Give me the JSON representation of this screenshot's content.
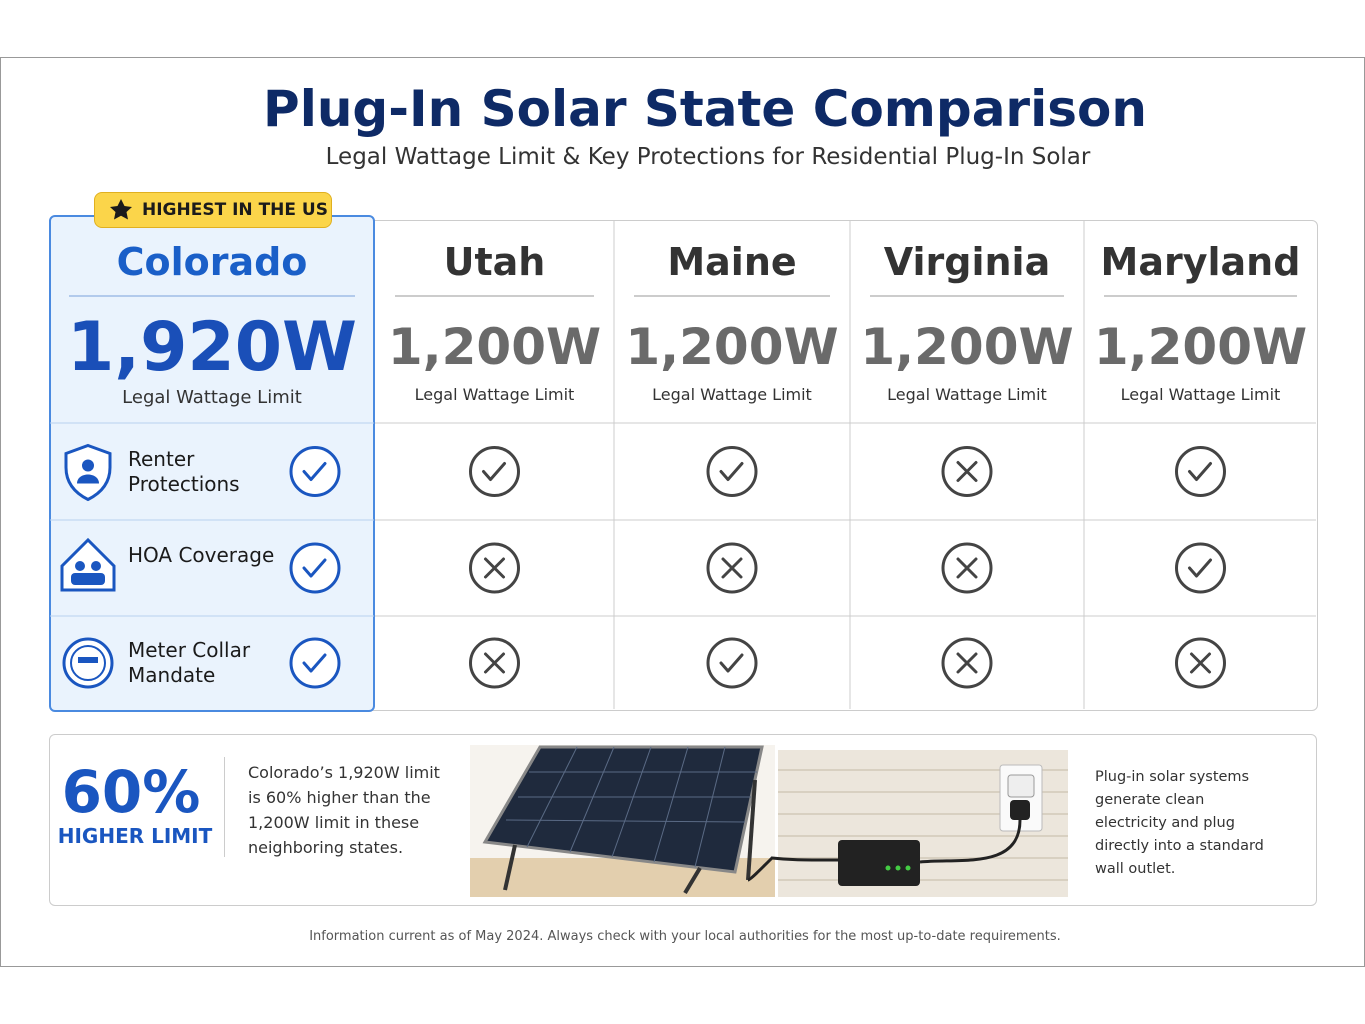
{
  "header": {
    "title": "Plug-In Solar State Comparison",
    "subtitle": "Legal Wattage Limit & Key Protections for Residential Plug-In Solar"
  },
  "badge": "HIGHEST IN THE US",
  "table": {
    "states": [
      {
        "name": "Colorado",
        "limit": "1,920W",
        "limit_label": "Legal Wattage Limit"
      },
      {
        "name": "Utah",
        "limit": "1,200W",
        "limit_label": "Legal Wattage Limit"
      },
      {
        "name": "Maine",
        "limit": "1,200W",
        "limit_label": "Legal Wattage Limit"
      },
      {
        "name": "Virginia",
        "limit": "1,200W",
        "limit_label": "Legal Wattage Limit"
      },
      {
        "name": "Maryland",
        "limit": "1,200W",
        "limit_label": "Legal Wattage Limit"
      }
    ],
    "features": [
      {
        "label": "Renter Protections",
        "support": [
          true,
          true,
          true,
          false,
          true
        ]
      },
      {
        "label": "HOA Coverage",
        "support": [
          true,
          false,
          false,
          false,
          true
        ]
      },
      {
        "label": "Meter Collar Mandate",
        "support": [
          true,
          false,
          true,
          false,
          false
        ]
      }
    ]
  },
  "callout": {
    "stat": "60%",
    "stat_label": "HIGHER LIMIT",
    "text": "Colorado’s 1,920W limit is 60% higher than the 1,200W limit in these neighboring states.",
    "caption": "Plug-in solar systems generate clean electricity and plug directly into a standard wall outlet."
  },
  "footnote": "Information current as of May 2024. Always check with your local authorities for the most up-to-date requirements."
}
